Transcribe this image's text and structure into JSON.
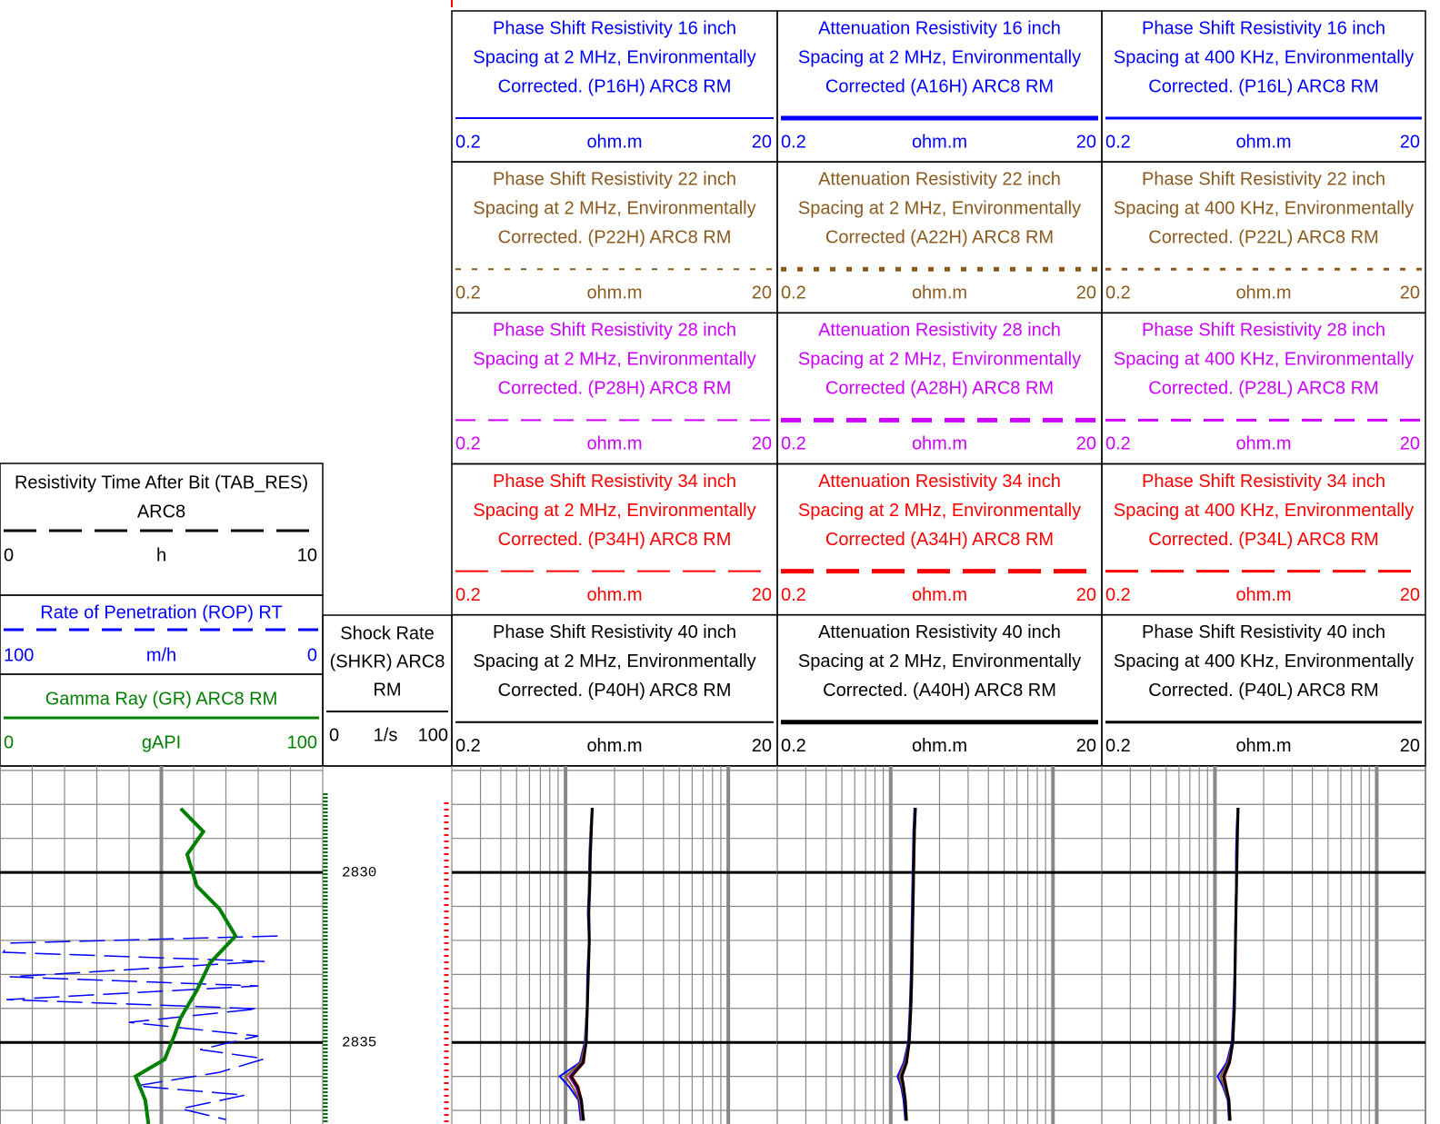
{
  "track1": {
    "headers": [
      {
        "title": [
          "Resistivity Time After Bit (TAB_RES)",
          "ARC8"
        ],
        "color": "#000000",
        "style": "long-dash",
        "scale": [
          0,
          10
        ],
        "unit": "h"
      },
      {
        "title": [
          "Rate of Penetration (ROP) RT"
        ],
        "color": "#0000ff",
        "style": "dashed",
        "scale": [
          100,
          0
        ],
        "unit": "m/h",
        "depths": [
          2831.87,
          2832.08,
          2832.35,
          2832.62,
          2833.07,
          2833.34,
          2833.74,
          2834.01,
          2834.41,
          2834.81,
          2835.21,
          2835.48,
          2835.88,
          2836.28,
          2836.55,
          2836.95,
          2837.27
        ],
        "values": [
          14,
          97,
          99,
          18,
          97,
          20,
          98,
          20,
          60,
          20,
          38,
          18,
          32,
          58,
          24,
          44,
          30
        ]
      },
      {
        "title": [
          "Gamma Ray (GR) ARC8 RM"
        ],
        "color": "#008000",
        "style": "solid",
        "scale": [
          0,
          100
        ],
        "unit": "gAPI",
        "depths": [
          2828.12,
          2828.8,
          2829.47,
          2830.4,
          2831.07,
          2831.87,
          2832.67,
          2833.47,
          2834.27,
          2834.8,
          2835.5,
          2836.0,
          2836.7,
          2837.4
        ],
        "values": [
          56,
          63,
          58,
          61,
          68,
          73,
          65,
          61,
          56,
          54,
          51,
          42,
          45,
          46
        ]
      }
    ]
  },
  "depth_track": {
    "header": {
      "title": [
        "Shock Rate",
        "(SHKR) ARC8",
        "RM"
      ],
      "scale": [
        0,
        100
      ],
      "unit": "1/s"
    },
    "range": [
      2826.87,
      2837.4
    ],
    "ticks": [
      2830,
      2835
    ]
  },
  "resistivity_tracks": [
    {
      "depths": [
        2828.1,
        2828.8,
        2829.5,
        2830.4,
        2831.2,
        2832.0,
        2833.0,
        2834.0,
        2835.0,
        2835.6,
        2836.0,
        2836.3,
        2836.7,
        2837.3
      ],
      "headers": [
        {
          "title": [
            "Phase Shift Resistivity 16 inch",
            "Spacing at 2 MHz, Environmentally",
            "Corrected. (P16H) ARC8 RM"
          ],
          "color": "#0000ff",
          "style": "solid",
          "scale": [
            0.2,
            20
          ],
          "unit": "ohm.m",
          "values": [
            1.45,
            1.42,
            1.4,
            1.39,
            1.37,
            1.39,
            1.36,
            1.35,
            1.31,
            1.22,
            0.92,
            1.05,
            1.2,
            1.24
          ]
        },
        {
          "title": [
            "Phase Shift Resistivity 22 inch",
            "Spacing at 2 MHz, Environmentally",
            "Corrected. (P22H) ARC8 RM"
          ],
          "color": "#8b5a1e",
          "style": "dotted",
          "scale": [
            0.2,
            20
          ],
          "unit": "ohm.m",
          "values": [
            1.45,
            1.42,
            1.41,
            1.39,
            1.38,
            1.39,
            1.37,
            1.35,
            1.32,
            1.24,
            1.0,
            1.1,
            1.22,
            1.26
          ]
        },
        {
          "title": [
            "Phase Shift Resistivity 28 inch",
            "Spacing at 2 MHz, Environmentally",
            "Corrected. (P28H) ARC8 RM"
          ],
          "color": "#cc00ff",
          "style": "dashed",
          "scale": [
            0.2,
            20
          ],
          "unit": "ohm.m",
          "values": [
            1.46,
            1.43,
            1.41,
            1.4,
            1.38,
            1.4,
            1.37,
            1.36,
            1.33,
            1.27,
            1.05,
            1.15,
            1.24,
            1.28
          ]
        },
        {
          "title": [
            "Phase Shift Resistivity 34 inch",
            "Spacing at 2 MHz, Environmentally",
            "Corrected. (P34H) ARC8 RM"
          ],
          "color": "#ff0000",
          "style": "long-dash",
          "scale": [
            0.2,
            20
          ],
          "unit": "ohm.m",
          "values": [
            1.47,
            1.44,
            1.42,
            1.41,
            1.39,
            1.4,
            1.38,
            1.37,
            1.34,
            1.3,
            1.1,
            1.2,
            1.26,
            1.3
          ]
        },
        {
          "title": [
            "Phase Shift Resistivity 40 inch",
            "Spacing at 2 MHz, Environmentally",
            "Corrected. (P40H) ARC8 RM"
          ],
          "color": "#000000",
          "style": "solid",
          "scale": [
            0.2,
            20
          ],
          "unit": "ohm.m",
          "values": [
            1.46,
            1.44,
            1.42,
            1.41,
            1.39,
            1.4,
            1.38,
            1.36,
            1.34,
            1.28,
            1.08,
            1.18,
            1.25,
            1.29
          ]
        }
      ]
    },
    {
      "depths": [
        2828.1,
        2828.8,
        2829.5,
        2830.4,
        2831.2,
        2832.0,
        2833.0,
        2834.0,
        2835.0,
        2835.6,
        2836.0,
        2836.3,
        2836.7,
        2837.3
      ],
      "headers": [
        {
          "title": [
            "Attenuation Resistivity 16 inch",
            "Spacing at 2 MHz, Environmentally",
            "Corrected (A16H) ARC8 RM"
          ],
          "color": "#0000ff",
          "style": "solid",
          "scale": [
            0.2,
            20
          ],
          "unit": "ohm.m",
          "values": [
            1.4,
            1.38,
            1.37,
            1.36,
            1.35,
            1.34,
            1.33,
            1.31,
            1.28,
            1.2,
            1.1,
            1.16,
            1.2,
            1.23
          ]
        },
        {
          "title": [
            "Attenuation Resistivity 22 inch",
            "Spacing at 2 MHz, Environmentally",
            "Corrected (A22H) ARC8 RM"
          ],
          "color": "#8b5a1e",
          "style": "dotted",
          "scale": [
            0.2,
            20
          ],
          "unit": "ohm.m",
          "values": [
            1.41,
            1.39,
            1.38,
            1.37,
            1.36,
            1.35,
            1.34,
            1.32,
            1.29,
            1.22,
            1.13,
            1.18,
            1.22,
            1.24
          ]
        },
        {
          "title": [
            "Attenuation Resistivity 28 inch",
            "Spacing at 2 MHz, Environmentally",
            "Corrected (A28H) ARC8 RM"
          ],
          "color": "#cc00ff",
          "style": "dashed",
          "scale": [
            0.2,
            20
          ],
          "unit": "ohm.m",
          "values": [
            1.42,
            1.4,
            1.39,
            1.38,
            1.37,
            1.36,
            1.35,
            1.33,
            1.3,
            1.24,
            1.16,
            1.2,
            1.23,
            1.25
          ]
        },
        {
          "title": [
            "Attenuation Resistivity 34 inch",
            "Spacing at 2 MHz, Environmentally",
            "Corrected (A34H) ARC8 RM"
          ],
          "color": "#ff0000",
          "style": "long-dash",
          "scale": [
            0.2,
            20
          ],
          "unit": "ohm.m",
          "values": [
            1.43,
            1.41,
            1.4,
            1.39,
            1.38,
            1.37,
            1.36,
            1.34,
            1.31,
            1.26,
            1.18,
            1.21,
            1.24,
            1.26
          ]
        },
        {
          "title": [
            "Attenuation Resistivity 40 inch",
            "Spacing at 2 MHz, Environmentally",
            "Corrected. (A40H) ARC8 RM"
          ],
          "color": "#000000",
          "style": "solid",
          "scale": [
            0.2,
            20
          ],
          "unit": "ohm.m",
          "values": [
            1.42,
            1.4,
            1.39,
            1.38,
            1.37,
            1.36,
            1.35,
            1.33,
            1.3,
            1.25,
            1.17,
            1.2,
            1.23,
            1.25
          ]
        }
      ]
    },
    {
      "depths": [
        2828.1,
        2828.8,
        2829.5,
        2830.4,
        2831.2,
        2832.0,
        2833.0,
        2834.0,
        2835.0,
        2835.6,
        2836.0,
        2836.3,
        2836.7,
        2837.3
      ],
      "headers": [
        {
          "title": [
            "Phase Shift Resistivity 16 inch",
            "Spacing at 400 KHz, Environmentally",
            "Corrected. (P16L) ARC8 RM"
          ],
          "color": "#0000ff",
          "style": "solid",
          "scale": [
            0.2,
            20
          ],
          "unit": "ohm.m",
          "values": [
            1.38,
            1.36,
            1.35,
            1.35,
            1.34,
            1.33,
            1.32,
            1.3,
            1.27,
            1.18,
            1.04,
            1.12,
            1.2,
            1.22
          ]
        },
        {
          "title": [
            "Phase Shift Resistivity 22 inch",
            "Spacing at 400 KHz, Environmentally",
            "Corrected. (P22L) ARC8 RM"
          ],
          "color": "#8b5a1e",
          "style": "dotted",
          "scale": [
            0.2,
            20
          ],
          "unit": "ohm.m",
          "values": [
            1.38,
            1.37,
            1.36,
            1.35,
            1.34,
            1.34,
            1.33,
            1.31,
            1.28,
            1.2,
            1.08,
            1.14,
            1.21,
            1.23
          ]
        },
        {
          "title": [
            "Phase Shift Resistivity 28 inch",
            "Spacing at 400 KHz, Environmentally",
            "Corrected. (P28L) ARC8 RM"
          ],
          "color": "#cc00ff",
          "style": "dashed",
          "scale": [
            0.2,
            20
          ],
          "unit": "ohm.m",
          "values": [
            1.39,
            1.37,
            1.36,
            1.36,
            1.35,
            1.34,
            1.33,
            1.31,
            1.29,
            1.22,
            1.12,
            1.16,
            1.22,
            1.24
          ]
        },
        {
          "title": [
            "Phase Shift Resistivity 34 inch",
            "Spacing at 400 KHz, Environmentally",
            "Corrected. (P34L) ARC8 RM"
          ],
          "color": "#ff0000",
          "style": "long-dash",
          "scale": [
            0.2,
            20
          ],
          "unit": "ohm.m",
          "values": [
            1.4,
            1.38,
            1.37,
            1.36,
            1.35,
            1.35,
            1.34,
            1.32,
            1.3,
            1.24,
            1.15,
            1.18,
            1.23,
            1.25
          ]
        },
        {
          "title": [
            "Phase Shift Resistivity 40 inch",
            "Spacing at 400 KHz, Environmentally",
            "Corrected. (P40L) ARC8 RM"
          ],
          "color": "#000000",
          "style": "solid",
          "scale": [
            0.2,
            20
          ],
          "unit": "ohm.m",
          "values": [
            1.39,
            1.38,
            1.37,
            1.36,
            1.35,
            1.34,
            1.33,
            1.32,
            1.29,
            1.23,
            1.13,
            1.17,
            1.22,
            1.24
          ]
        }
      ]
    }
  ]
}
